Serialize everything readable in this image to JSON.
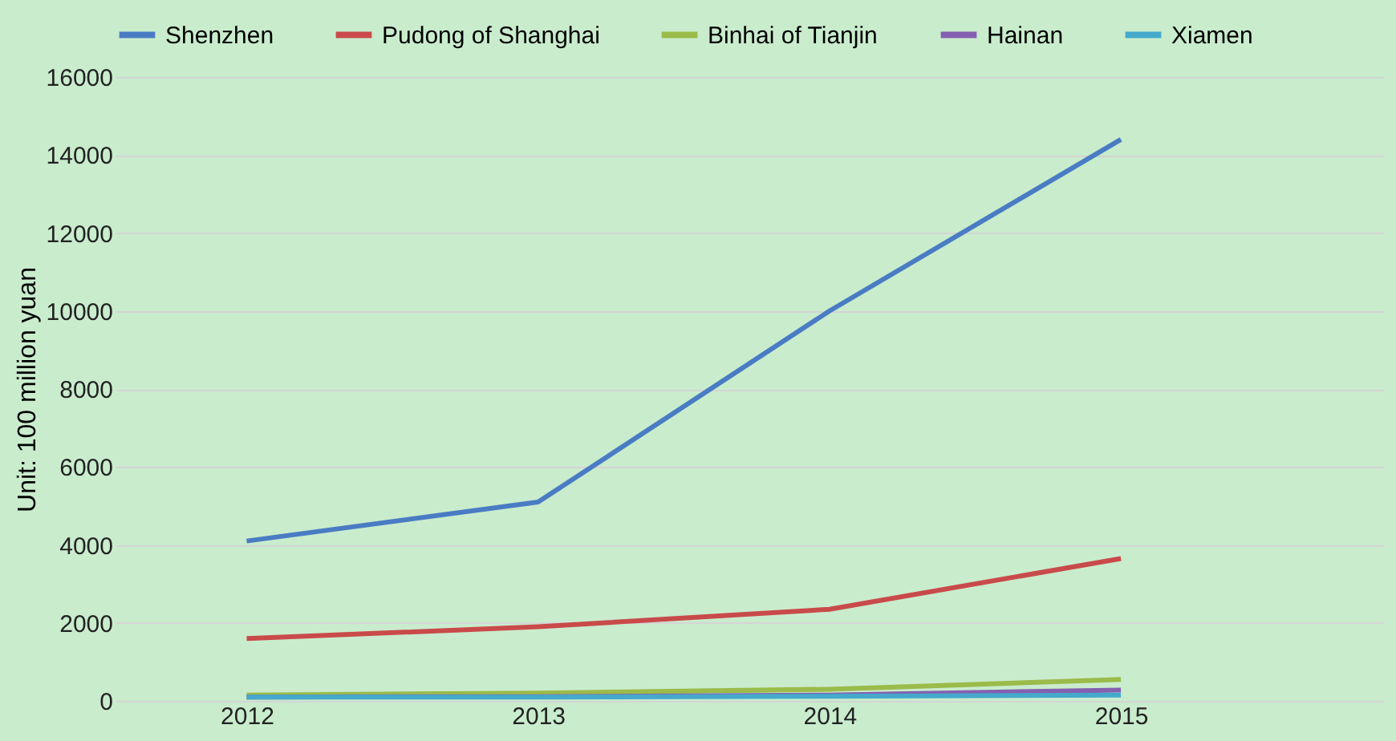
{
  "chart_data": {
    "type": "line",
    "ylabel": "Unit: 100 million yuan",
    "categories": [
      "2012",
      "2013",
      "2014",
      "2015"
    ],
    "series": [
      {
        "name": "Shenzhen",
        "color": "#4a7cc4",
        "values": [
          4100,
          5100,
          10000,
          14400
        ]
      },
      {
        "name": "Pudong of Shanghai",
        "color": "#c94a4a",
        "values": [
          1600,
          1900,
          2350,
          3650
        ]
      },
      {
        "name": "Binhai of Tianjin",
        "color": "#9bbb4a",
        "values": [
          150,
          200,
          300,
          550
        ]
      },
      {
        "name": "Hainan",
        "color": "#8460b0",
        "values": [
          100,
          110,
          150,
          280
        ]
      },
      {
        "name": "Xiamen",
        "color": "#45a9cc",
        "values": [
          100,
          100,
          120,
          150
        ]
      }
    ],
    "ylim": [
      0,
      16000
    ],
    "yticks": [
      0,
      2000,
      4000,
      6000,
      8000,
      10000,
      12000,
      14000,
      16000
    ],
    "grid": "y",
    "legend": "top",
    "marker": "none",
    "line_style": "solid"
  }
}
